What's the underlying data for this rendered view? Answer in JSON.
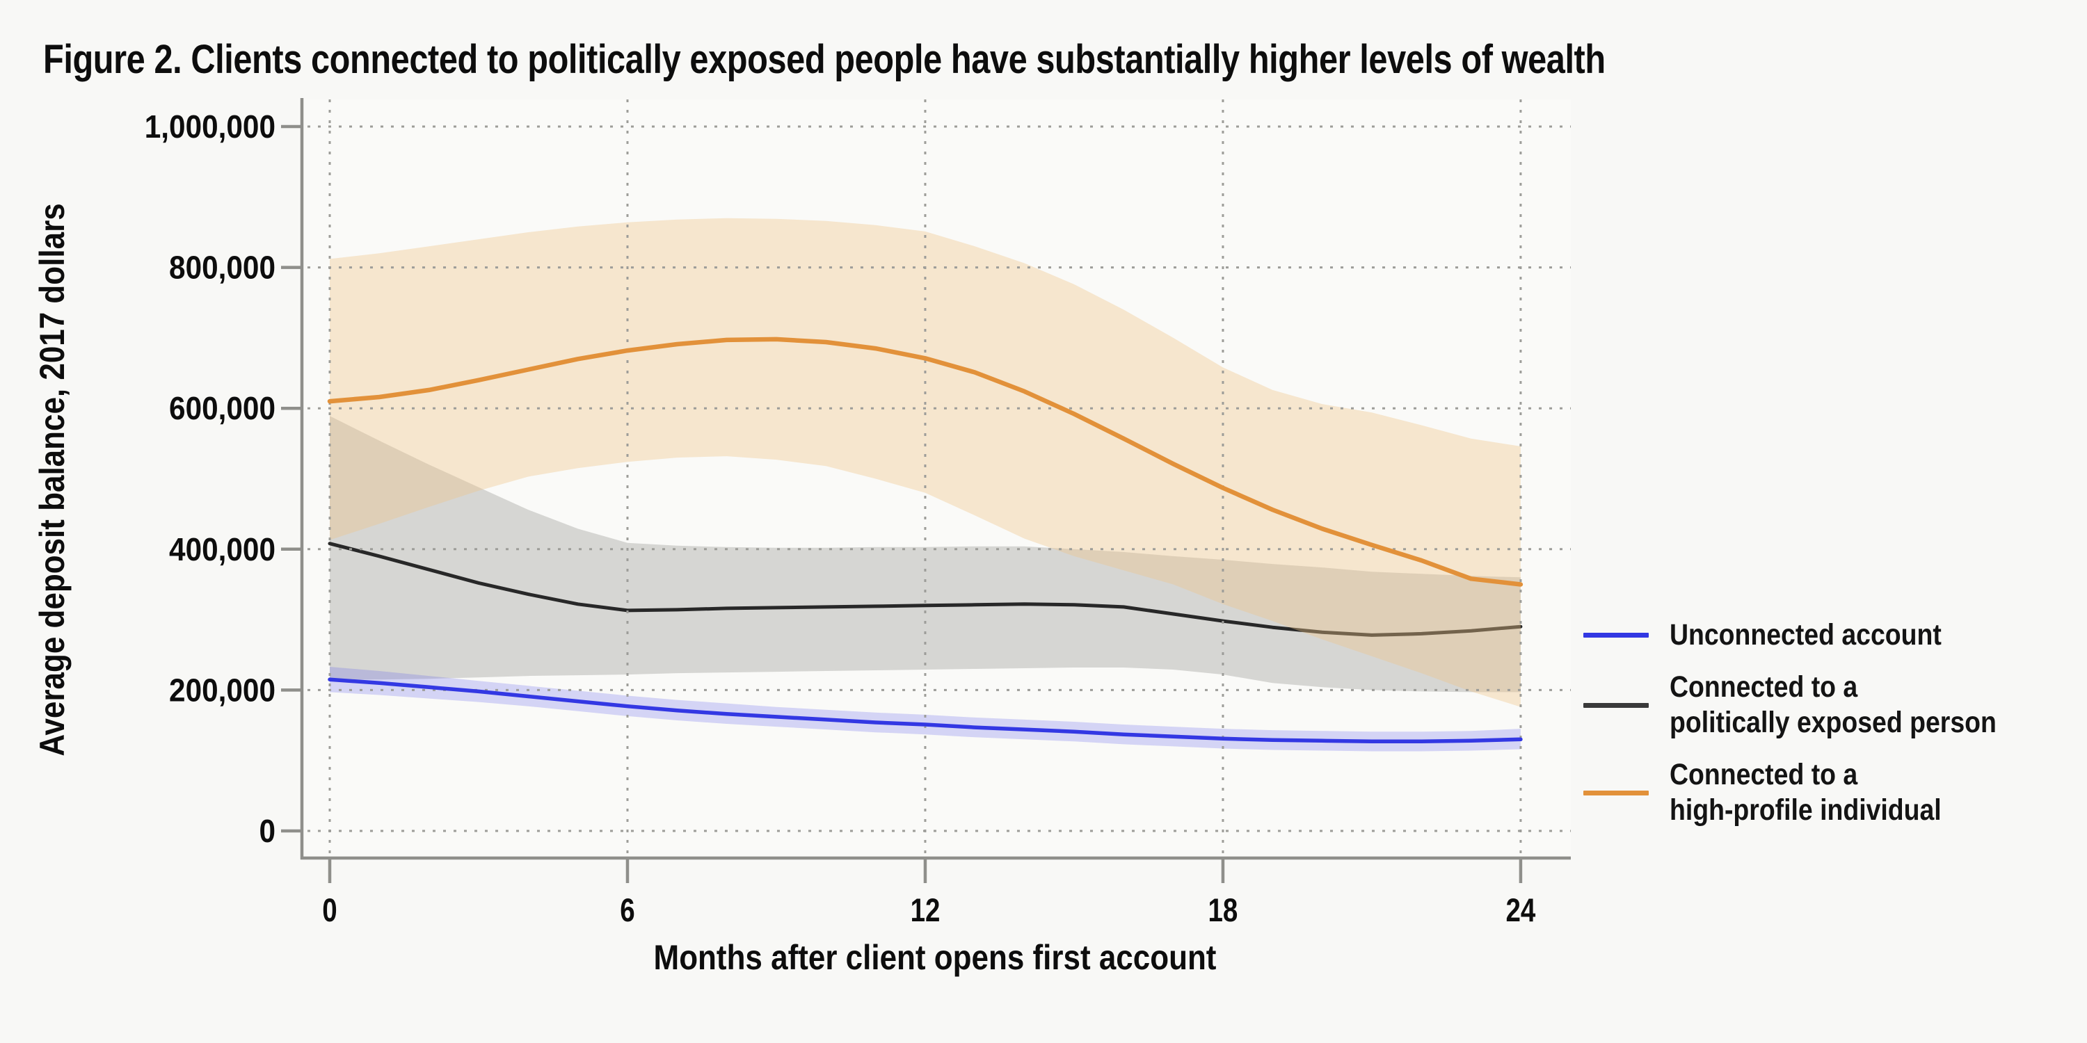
{
  "figure": {
    "title": "Figure 2. Clients connected to politically exposed people have substantially higher levels of wealth",
    "background_color": "#f8f8f6",
    "plot_background_color": "#fafaf8",
    "axis_color": "#8f8f8b",
    "grid_color": "#9d9d99"
  },
  "y_axis": {
    "title": "Average deposit balance, 2017 dollars",
    "tick_labels": [
      "0",
      "200,000",
      "400,000",
      "600,000",
      "800,000",
      "1,000,000"
    ],
    "tick_values_thousands": [
      0,
      200,
      400,
      600,
      800,
      1000
    ]
  },
  "x_axis": {
    "title": "Months after client opens first account",
    "tick_labels": [
      "0",
      "6",
      "12",
      "18",
      "24"
    ],
    "tick_values": [
      0,
      6,
      12,
      18,
      24
    ]
  },
  "legend": {
    "items": [
      {
        "id": "unconnected",
        "lines": [
          "Unconnected account",
          ""
        ],
        "color": "#3338e3"
      },
      {
        "id": "pep",
        "lines": [
          "Connected to a",
          "politically exposed person"
        ],
        "color": "#3a3a3a"
      },
      {
        "id": "high_profile",
        "lines": [
          "Connected to a",
          "high-profile individual"
        ],
        "color": "#e2913a"
      }
    ]
  },
  "chart_data": {
    "type": "line",
    "title": "Figure 2. Clients connected to politically exposed people have substantially higher levels of wealth",
    "xlabel": "Months after client opens first account",
    "ylabel": "Average deposit balance, 2017 dollars",
    "xlim": [
      0,
      24
    ],
    "ylim": [
      0,
      1000000
    ],
    "x_tick_values": [
      0,
      6,
      12,
      18,
      24
    ],
    "y_tick_values": [
      0,
      200000,
      400000,
      600000,
      800000,
      1000000
    ],
    "grid": "dotted",
    "legend_position": "right-outside",
    "values_unit": "thousands of 2017 dollars",
    "x_months": [
      0,
      1,
      2,
      3,
      4,
      5,
      6,
      7,
      8,
      9,
      10,
      11,
      12,
      13,
      14,
      15,
      16,
      17,
      18,
      19,
      20,
      21,
      22,
      23,
      24
    ],
    "series": [
      {
        "id": "high_profile",
        "name": "Connected to a high-profile individual",
        "line_color": "#e2913a",
        "line_width": 6.5,
        "band_color": "rgba(240,196,138,0.38)",
        "values_k": [
          610,
          616,
          626,
          640,
          655,
          670,
          682,
          691,
          697,
          698,
          694,
          685,
          671,
          651,
          624,
          592,
          557,
          521,
          487,
          456,
          429,
          406,
          384,
          358,
          350
        ],
        "ci_upper_k": [
          812,
          820,
          830,
          840,
          850,
          858,
          864,
          868,
          870,
          869,
          866,
          860,
          851,
          830,
          806,
          776,
          740,
          700,
          658,
          626,
          606,
          594,
          576,
          557,
          546
        ],
        "ci_lower_k": [
          413,
          436,
          460,
          483,
          503,
          515,
          524,
          530,
          532,
          527,
          518,
          500,
          480,
          448,
          415,
          390,
          370,
          350,
          322,
          298,
          272,
          248,
          224,
          198,
          176
        ]
      },
      {
        "id": "pep",
        "name": "Connected to a politically exposed person",
        "line_color": "#282828",
        "line_width": 5,
        "band_color": "rgba(145,145,142,0.34)",
        "values_k": [
          408,
          390,
          371,
          352,
          336,
          322,
          313,
          314,
          316,
          317,
          318,
          319,
          320,
          321,
          322,
          321,
          318,
          308,
          298,
          289,
          282,
          278,
          280,
          284,
          290
        ],
        "ci_upper_k": [
          589,
          554,
          520,
          488,
          456,
          429,
          409,
          405,
          403,
          402,
          402,
          403,
          403,
          404,
          404,
          400,
          396,
          390,
          385,
          379,
          374,
          368,
          365,
          362,
          360
        ],
        "ci_lower_k": [
          215,
          215,
          216,
          218,
          220,
          221,
          222,
          224,
          225,
          226,
          227,
          228,
          229,
          230,
          231,
          232,
          232,
          229,
          222,
          210,
          204,
          200,
          198,
          197,
          197
        ]
      },
      {
        "id": "unconnected",
        "name": "Unconnected account",
        "line_color": "#3338e3",
        "line_width": 5.5,
        "band_color": "rgba(100,100,235,0.25)",
        "values_k": [
          215,
          210,
          204,
          198,
          191,
          184,
          177,
          171,
          166,
          162,
          158,
          154,
          151,
          147,
          144,
          141,
          137,
          134,
          131,
          129,
          128,
          127,
          127,
          128,
          130
        ],
        "ci_upper_k": [
          233,
          227,
          220,
          213,
          206,
          199,
          192,
          186,
          181,
          176,
          172,
          168,
          165,
          161,
          158,
          155,
          151,
          148,
          145,
          143,
          142,
          141,
          141,
          142,
          145
        ],
        "ci_lower_k": [
          197,
          193,
          188,
          183,
          177,
          170,
          163,
          157,
          152,
          148,
          144,
          140,
          137,
          133,
          130,
          127,
          123,
          120,
          117,
          115,
          114,
          113,
          113,
          114,
          116
        ]
      }
    ]
  }
}
